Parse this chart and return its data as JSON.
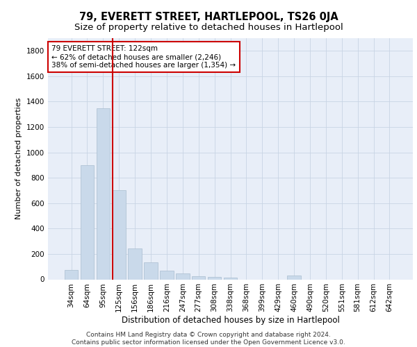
{
  "title1": "79, EVERETT STREET, HARTLEPOOL, TS26 0JA",
  "title2": "Size of property relative to detached houses in Hartlepool",
  "xlabel": "Distribution of detached houses by size in Hartlepool",
  "ylabel": "Number of detached properties",
  "categories": [
    "34sqm",
    "64sqm",
    "95sqm",
    "125sqm",
    "156sqm",
    "186sqm",
    "216sqm",
    "247sqm",
    "277sqm",
    "308sqm",
    "338sqm",
    "368sqm",
    "399sqm",
    "429sqm",
    "460sqm",
    "490sqm",
    "520sqm",
    "551sqm",
    "581sqm",
    "612sqm",
    "642sqm"
  ],
  "values": [
    75,
    900,
    1350,
    700,
    245,
    135,
    70,
    45,
    25,
    20,
    15,
    0,
    0,
    0,
    30,
    0,
    0,
    0,
    0,
    0,
    0
  ],
  "bar_color": "#c9d9ea",
  "bar_edge_color": "#aabdcf",
  "highlight_bar_index": 3,
  "highlight_line_color": "#cc0000",
  "annotation_text": "79 EVERETT STREET: 122sqm\n← 62% of detached houses are smaller (2,246)\n38% of semi-detached houses are larger (1,354) →",
  "annotation_box_color": "#ffffff",
  "annotation_box_edge_color": "#cc0000",
  "ylim": [
    0,
    1900
  ],
  "yticks": [
    0,
    200,
    400,
    600,
    800,
    1000,
    1200,
    1400,
    1600,
    1800
  ],
  "grid_color": "#c8d4e4",
  "background_color": "#e8eef8",
  "footer_text": "Contains HM Land Registry data © Crown copyright and database right 2024.\nContains public sector information licensed under the Open Government Licence v3.0.",
  "title1_fontsize": 10.5,
  "title2_fontsize": 9.5,
  "xlabel_fontsize": 8.5,
  "ylabel_fontsize": 8,
  "tick_fontsize": 7.5,
  "annotation_fontsize": 7.5,
  "footer_fontsize": 6.5
}
